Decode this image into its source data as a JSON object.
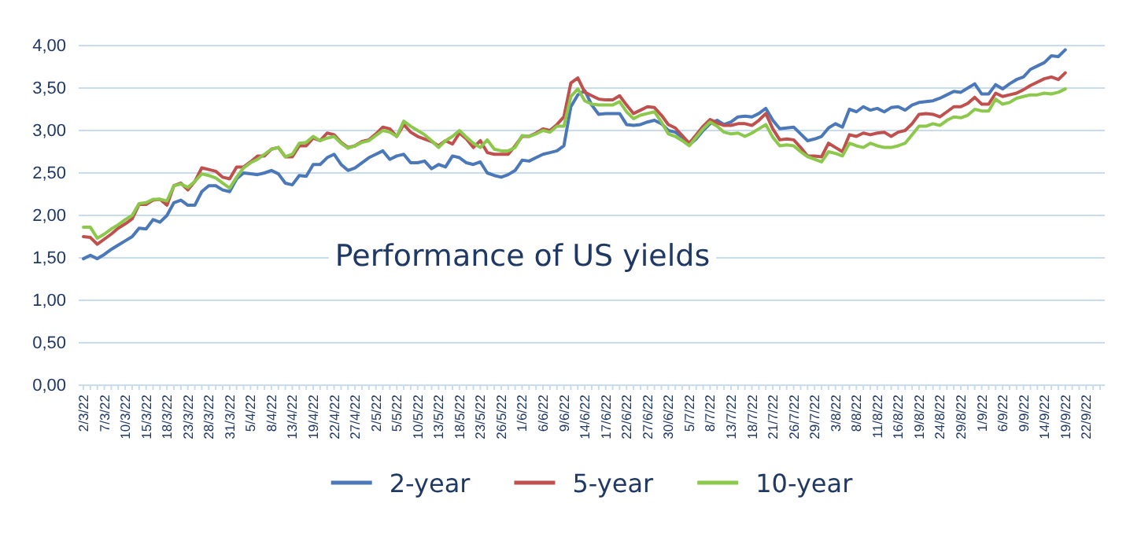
{
  "chart_data": {
    "type": "line",
    "title": "Performance of US yields",
    "categories": [
      "2/3/22",
      null,
      null,
      "7/3/22",
      null,
      null,
      "10/3/22",
      null,
      null,
      "15/3/22",
      null,
      null,
      "18/3/22",
      null,
      null,
      "23/3/22",
      null,
      null,
      "28/3/22",
      null,
      null,
      "31/3/22",
      null,
      null,
      "5/4/22",
      null,
      null,
      "8/4/22",
      null,
      null,
      "13/4/22",
      null,
      null,
      "19/4/22",
      null,
      null,
      "22/4/22",
      null,
      null,
      "27/4/22",
      null,
      null,
      "2/5/22",
      null,
      null,
      "5/5/22",
      null,
      null,
      "10/5/22",
      null,
      null,
      "13/5/22",
      null,
      null,
      "18/5/22",
      null,
      null,
      "23/5/22",
      null,
      null,
      "26/5/22",
      null,
      null,
      "1/6/22",
      null,
      null,
      "6/6/22",
      null,
      null,
      "9/6/22",
      null,
      null,
      "14/6/22",
      null,
      null,
      "17/6/22",
      null,
      null,
      "22/6/22",
      null,
      null,
      "27/6/22",
      null,
      null,
      "30/6/22",
      null,
      null,
      "5/7/22",
      null,
      null,
      "8/7/22",
      null,
      null,
      "13/7/22",
      null,
      null,
      "18/7/22",
      null,
      null,
      "21/7/22",
      null,
      null,
      "26/7/22",
      null,
      null,
      "29/7/22",
      null,
      null,
      "3/8/22",
      null,
      null,
      "8/8/22",
      null,
      null,
      "11/8/22",
      null,
      null,
      "16/8/22",
      null,
      null,
      "19/8/22",
      null,
      null,
      "24/8/22",
      null,
      null,
      "29/8/22",
      null,
      null,
      "1/9/22",
      null,
      null,
      "6/9/22",
      null,
      null,
      "9/9/22",
      null,
      null,
      "14/9/22",
      null,
      null,
      "19/9/22",
      null,
      null,
      "22/9/22",
      null,
      null
    ],
    "series": [
      {
        "name": "2-year",
        "color": "#4a78b8",
        "values": [
          1.49,
          1.53,
          1.49,
          1.54,
          1.6,
          1.65,
          1.7,
          1.75,
          1.85,
          1.84,
          1.95,
          1.92,
          2.0,
          2.15,
          2.18,
          2.12,
          2.12,
          2.28,
          2.35,
          2.35,
          2.3,
          2.28,
          2.43,
          2.5,
          2.49,
          2.48,
          2.5,
          2.53,
          2.49,
          2.38,
          2.36,
          2.47,
          2.46,
          2.6,
          2.6,
          2.68,
          2.72,
          2.6,
          2.53,
          2.56,
          2.62,
          2.68,
          2.72,
          2.76,
          2.66,
          2.7,
          2.72,
          2.62,
          2.62,
          2.64,
          2.55,
          2.6,
          2.57,
          2.7,
          2.68,
          2.62,
          2.6,
          2.63,
          2.5,
          2.47,
          2.45,
          2.48,
          2.53,
          2.65,
          2.64,
          2.68,
          2.72,
          2.74,
          2.76,
          2.82,
          3.28,
          3.42,
          3.47,
          3.3,
          3.19,
          3.2,
          3.2,
          3.2,
          3.07,
          3.06,
          3.07,
          3.1,
          3.12,
          3.08,
          3.0,
          2.98,
          2.92,
          2.83,
          2.9,
          3.0,
          3.08,
          3.12,
          3.07,
          3.1,
          3.16,
          3.17,
          3.16,
          3.2,
          3.26,
          3.12,
          3.02,
          3.03,
          3.04,
          2.96,
          2.88,
          2.9,
          2.93,
          3.03,
          3.08,
          3.04,
          3.25,
          3.22,
          3.28,
          3.24,
          3.26,
          3.22,
          3.27,
          3.28,
          3.24,
          3.3,
          3.33,
          3.34,
          3.35,
          3.38,
          3.42,
          3.46,
          3.45,
          3.5,
          3.55,
          3.43,
          3.43,
          3.54,
          3.49,
          3.55,
          3.6,
          3.63,
          3.72,
          3.76,
          3.8,
          3.88,
          3.87,
          3.95,
          null,
          null,
          null,
          null,
          null
        ]
      },
      {
        "name": "5-year",
        "color": "#c0504d",
        "values": [
          1.75,
          1.74,
          1.66,
          1.72,
          1.78,
          1.85,
          1.9,
          1.96,
          2.13,
          2.13,
          2.18,
          2.19,
          2.12,
          2.35,
          2.38,
          2.3,
          2.4,
          2.56,
          2.54,
          2.52,
          2.45,
          2.43,
          2.57,
          2.57,
          2.63,
          2.7,
          2.7,
          2.78,
          2.8,
          2.69,
          2.69,
          2.82,
          2.82,
          2.91,
          2.88,
          2.97,
          2.95,
          2.86,
          2.8,
          2.82,
          2.87,
          2.89,
          2.96,
          3.04,
          3.02,
          2.93,
          3.07,
          2.98,
          2.93,
          2.9,
          2.87,
          2.82,
          2.88,
          2.84,
          2.97,
          2.9,
          2.8,
          2.88,
          2.74,
          2.72,
          2.72,
          2.72,
          2.82,
          2.93,
          2.93,
          2.97,
          3.02,
          3.0,
          3.07,
          3.16,
          3.56,
          3.62,
          3.45,
          3.41,
          3.37,
          3.36,
          3.36,
          3.41,
          3.3,
          3.2,
          3.24,
          3.28,
          3.27,
          3.18,
          3.07,
          3.03,
          2.94,
          2.85,
          2.95,
          3.05,
          3.13,
          3.09,
          3.06,
          3.06,
          3.08,
          3.08,
          3.06,
          3.12,
          3.2,
          3.02,
          2.89,
          2.9,
          2.89,
          2.8,
          2.7,
          2.7,
          2.69,
          2.85,
          2.8,
          2.75,
          2.95,
          2.93,
          2.97,
          2.95,
          2.97,
          2.98,
          2.93,
          2.98,
          3.0,
          3.08,
          3.19,
          3.2,
          3.19,
          3.16,
          3.22,
          3.28,
          3.28,
          3.32,
          3.39,
          3.31,
          3.31,
          3.44,
          3.4,
          3.42,
          3.44,
          3.48,
          3.53,
          3.57,
          3.61,
          3.63,
          3.6,
          3.68,
          null,
          null,
          null,
          null,
          null
        ]
      },
      {
        "name": "10-year",
        "color": "#8cc84b",
        "values": [
          1.86,
          1.86,
          1.73,
          1.78,
          1.84,
          1.89,
          1.95,
          2.0,
          2.14,
          2.15,
          2.19,
          2.19,
          2.17,
          2.35,
          2.37,
          2.33,
          2.4,
          2.49,
          2.47,
          2.44,
          2.38,
          2.32,
          2.45,
          2.56,
          2.62,
          2.66,
          2.72,
          2.78,
          2.8,
          2.69,
          2.72,
          2.85,
          2.86,
          2.93,
          2.88,
          2.91,
          2.93,
          2.85,
          2.79,
          2.82,
          2.86,
          2.88,
          2.94,
          3.0,
          2.98,
          2.93,
          3.11,
          3.05,
          3.0,
          2.95,
          2.88,
          2.8,
          2.88,
          2.93,
          3.0,
          2.92,
          2.85,
          2.8,
          2.89,
          2.78,
          2.76,
          2.76,
          2.8,
          2.94,
          2.93,
          2.96,
          3.0,
          2.98,
          3.05,
          3.05,
          3.4,
          3.49,
          3.35,
          3.31,
          3.3,
          3.3,
          3.3,
          3.34,
          3.22,
          3.14,
          3.18,
          3.2,
          3.22,
          3.1,
          2.96,
          2.93,
          2.88,
          2.82,
          2.92,
          3.02,
          3.1,
          3.05,
          2.98,
          2.96,
          2.97,
          2.93,
          2.97,
          3.02,
          3.07,
          2.92,
          2.82,
          2.83,
          2.82,
          2.75,
          2.69,
          2.66,
          2.63,
          2.75,
          2.73,
          2.7,
          2.85,
          2.82,
          2.8,
          2.85,
          2.82,
          2.8,
          2.8,
          2.82,
          2.85,
          2.95,
          3.05,
          3.05,
          3.08,
          3.06,
          3.12,
          3.16,
          3.15,
          3.18,
          3.25,
          3.23,
          3.23,
          3.37,
          3.31,
          3.33,
          3.38,
          3.4,
          3.42,
          3.42,
          3.44,
          3.43,
          3.45,
          3.49,
          null,
          null,
          null,
          null,
          null
        ]
      }
    ],
    "ylim": [
      0,
      4
    ],
    "yticks": [
      {
        "value": 0,
        "label": "0,00"
      },
      {
        "value": 0.5,
        "label": "0,50"
      },
      {
        "value": 1,
        "label": "1,00"
      },
      {
        "value": 1.5,
        "label": "1,50"
      },
      {
        "value": 2,
        "label": "2,00"
      },
      {
        "value": 2.5,
        "label": "2,50"
      },
      {
        "value": 3,
        "label": "3,00"
      },
      {
        "value": 3.5,
        "label": "3,50"
      },
      {
        "value": 4,
        "label": "4,00"
      }
    ],
    "grid": "y",
    "legend": "bottom",
    "marker": "none",
    "line_style": "solid"
  }
}
